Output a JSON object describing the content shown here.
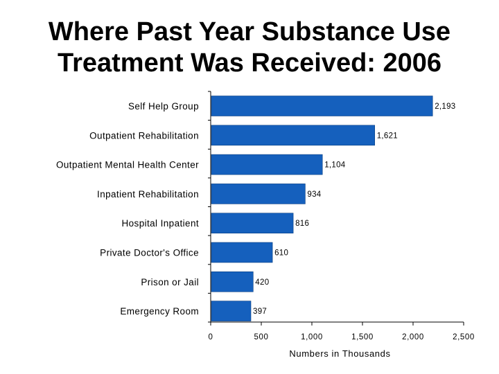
{
  "title_lines": [
    "Where Past Year Substance Use",
    "Treatment Was Received: 2006"
  ],
  "colors": {
    "bar": "#1560BD",
    "bar_stroke": "#0B3F80",
    "axis": "#000000"
  },
  "chart_data": {
    "type": "bar",
    "orientation": "horizontal",
    "title": "Where Past Year Substance Use Treatment Was Received: 2006",
    "categories": [
      "Self Help Group",
      "Outpatient Rehabilitation",
      "Outpatient Mental Health Center",
      "Inpatient Rehabilitation",
      "Hospital Inpatient",
      "Private Doctor's Office",
      "Prison or Jail",
      "Emergency Room"
    ],
    "values": [
      2193,
      1621,
      1104,
      934,
      816,
      610,
      420,
      397
    ],
    "value_labels": [
      "2,193",
      "1,621",
      "1,104",
      "934",
      "816",
      "610",
      "420",
      "397"
    ],
    "xlabel": "Numbers in Thousands",
    "ylabel": "",
    "xlim": [
      0,
      2500
    ],
    "x_ticks": [
      0,
      500,
      1000,
      1500,
      2000,
      2500
    ],
    "x_tick_labels": [
      "0",
      "500",
      "1,000",
      "1,500",
      "2,000",
      "2,500"
    ],
    "grid": false,
    "legend": "none"
  }
}
